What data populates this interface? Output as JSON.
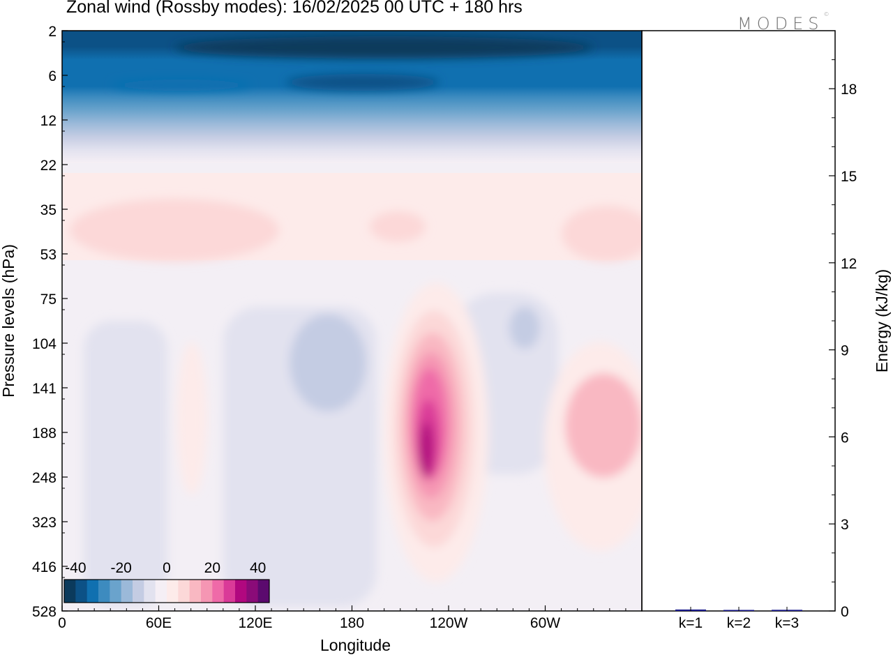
{
  "title": "Zonal wind (Rossby modes):  16/02/2025  00 UTC  + 180 hrs",
  "logo": "MODES",
  "logo_mark": "©",
  "chart_data": [
    {
      "type": "heatmap",
      "title": "Zonal wind (Rossby modes):  16/02/2025  00 UTC  + 180 hrs",
      "xlabel": "Longitude",
      "ylabel": "Pressure levels (hPa)",
      "x_ticks": [
        "0",
        "60E",
        "120E",
        "180",
        "120W",
        "60W"
      ],
      "x_tick_degrees": [
        0,
        60,
        120,
        180,
        240,
        300
      ],
      "xlim": [
        0,
        360
      ],
      "y_ticks": [
        "2",
        "6",
        "12",
        "22",
        "35",
        "53",
        "75",
        "104",
        "141",
        "188",
        "248",
        "323",
        "416",
        "528"
      ],
      "y_scale": "log",
      "colorbar": {
        "tick_labels": [
          "-40",
          "-20",
          "0",
          "20",
          "40"
        ],
        "levels": [
          -45,
          -40,
          -35,
          -30,
          -25,
          -20,
          -15,
          -10,
          -5,
          0,
          5,
          10,
          15,
          20,
          25,
          30,
          35,
          40,
          45
        ],
        "colors": [
          "#0b3a5c",
          "#0c5186",
          "#1070b0",
          "#3d8bbf",
          "#6aa3cc",
          "#9bb9d9",
          "#c4cce3",
          "#e2e2ef",
          "#f5eff5",
          "#fdebea",
          "#fcd8d8",
          "#f9b8c2",
          "#f596b3",
          "#ef6aa8",
          "#da3a98",
          "#b1087f",
          "#8a0b78",
          "#5b0a6e"
        ]
      },
      "features": [
        {
          "description": "strong easterlies",
          "pressure_range_hPa": [
            2,
            12
          ],
          "value_ms": -40
        },
        {
          "description": "westerly jet core",
          "lon": 250,
          "pressure_hPa": 200,
          "value_ms": 40
        },
        {
          "description": "westerly maximum",
          "lon": 330,
          "pressure_hPa": 190,
          "value_ms": 10
        }
      ]
    },
    {
      "type": "bar",
      "categories": [
        "k=1",
        "k=2",
        "k=3"
      ],
      "values": [
        0.05,
        0.03,
        0.04
      ],
      "ylabel": "Energy (kJ/kg)",
      "ylim": [
        0,
        20
      ],
      "y_ticks": [
        "0",
        "3",
        "6",
        "9",
        "12",
        "15",
        "18"
      ],
      "bar_color": "#1a1a8c"
    }
  ]
}
